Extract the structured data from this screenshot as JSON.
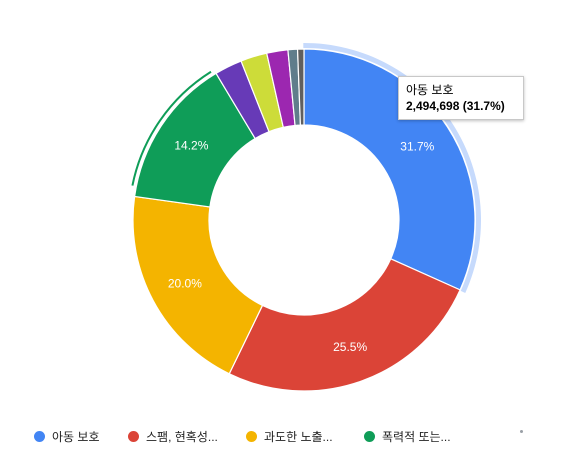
{
  "chart_data": {
    "type": "pie",
    "donut": true,
    "slices": [
      {
        "label": "아동 보호",
        "value": 31.7,
        "color": "#4285f4",
        "display_label": "31.7%"
      },
      {
        "label": "스팸, 현혹성...",
        "value": 25.5,
        "color": "#db4437",
        "display_label": "25.5%"
      },
      {
        "label": "과도한 노출...",
        "value": 20.0,
        "color": "#f4b400",
        "display_label": "20.0%"
      },
      {
        "label": "폭력적 또는...",
        "value": 14.2,
        "color": "#0f9d58",
        "display_label": "14.2%"
      },
      {
        "label": "",
        "value": 2.6,
        "color": "#673ab7",
        "display_label": ""
      },
      {
        "label": "",
        "value": 2.5,
        "color": "#cddc39",
        "display_label": ""
      },
      {
        "label": "",
        "value": 2.0,
        "color": "#9c27b0",
        "display_label": ""
      },
      {
        "label": "",
        "value": 0.9,
        "color": "#607d8b",
        "display_label": ""
      },
      {
        "label": "",
        "value": 0.6,
        "color": "#5f5f5f",
        "display_label": ""
      }
    ],
    "highlighted_slice": 0,
    "legend_position": "bottom"
  },
  "tooltip": {
    "title": "아동 보호",
    "value": "2,494,698 (31.7%)"
  },
  "legend": {
    "items": [
      {
        "label": "아동 보호",
        "color": "#4285f4"
      },
      {
        "label": "스팸, 현혹성...",
        "color": "#db4437"
      },
      {
        "label": "과도한 노출...",
        "color": "#f4b400"
      },
      {
        "label": "폭력적 또는...",
        "color": "#0f9d58"
      }
    ]
  }
}
